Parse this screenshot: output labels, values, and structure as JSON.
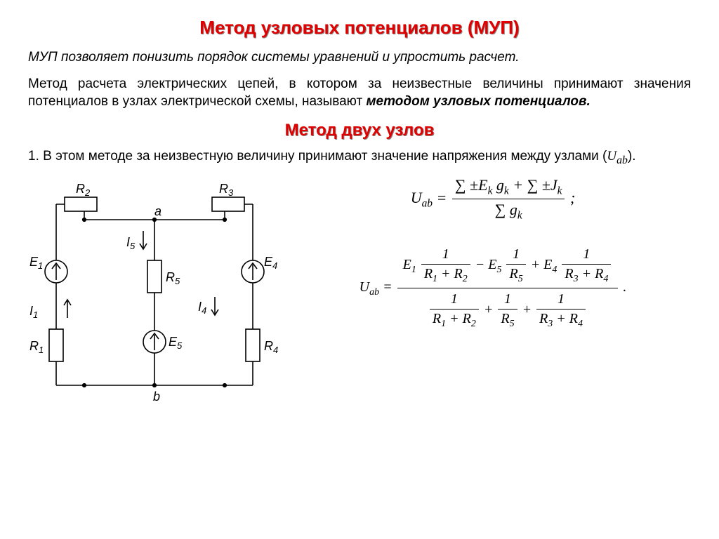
{
  "title_main": "Метод узловых потенциалов (МУП)",
  "title_main_color": "#e00000",
  "title_main_fontsize": 26,
  "intro": "МУП позволяет понизить порядок системы уравнений и упростить расчет.",
  "intro_color": "#000000",
  "intro_fontsize": 19,
  "intro_italic": true,
  "definition_prefix": "Метод расчета электрических цепей, в котором за неизвестные величины принимают значения потенциалов в узлах электрической схемы, называют ",
  "definition_term": "методом узловых потенциалов.",
  "definition_fontsize": 19,
  "title_sub": "Метод двух узлов",
  "title_sub_color": "#e00000",
  "title_sub_fontsize": 24,
  "point_prefix": "1. В этом методе за неизвестную величину принимают значение напряжения между узлами (",
  "point_var": "U",
  "point_var_sub": "ab",
  "point_suffix": ").",
  "point_fontsize": 19,
  "diagram": {
    "stroke": "#000000",
    "stroke_width": 1.6,
    "fontsize": 18,
    "labels": {
      "R1": "R",
      "R1s": "1",
      "R2": "R",
      "R2s": "2",
      "R3": "R",
      "R3s": "3",
      "R4": "R",
      "R4s": "4",
      "R5": "R",
      "R5s": "5",
      "E1": "E",
      "E1s": "1",
      "E4": "E",
      "E4s": "4",
      "E5": "E",
      "E5s": "5",
      "I1": "I",
      "I1s": "1",
      "I4": "I",
      "I4s": "4",
      "I5": "I",
      "I5s": "5",
      "a": "a",
      "b": "b"
    }
  },
  "formula1": {
    "lhs": "U",
    "lhs_sub": "ab",
    "num": "∑ ± E_k g_k + ∑ ± J_k",
    "den": "∑ g_k",
    "fontsize": 22
  },
  "formula2": {
    "lhs": "U",
    "lhs_sub": "ab",
    "fontsize": 20,
    "num_terms": [
      {
        "E": "E",
        "Es": "1",
        "sign": "",
        "d1": "R",
        "d1s": "1",
        "d2": "R",
        "d2s": "2"
      },
      {
        "E": "E",
        "Es": "5",
        "sign": "−",
        "d1": "R",
        "d1s": "5",
        "d2": "",
        "d2s": ""
      },
      {
        "E": "E",
        "Es": "4",
        "sign": "+",
        "d1": "R",
        "d1s": "3",
        "d2": "R",
        "d2s": "4"
      }
    ],
    "den_terms": [
      {
        "d1": "R",
        "d1s": "1",
        "d2": "R",
        "d2s": "2"
      },
      {
        "d1": "R",
        "d1s": "5",
        "d2": "",
        "d2s": ""
      },
      {
        "d1": "R",
        "d1s": "3",
        "d2": "R",
        "d2s": "4"
      }
    ]
  }
}
